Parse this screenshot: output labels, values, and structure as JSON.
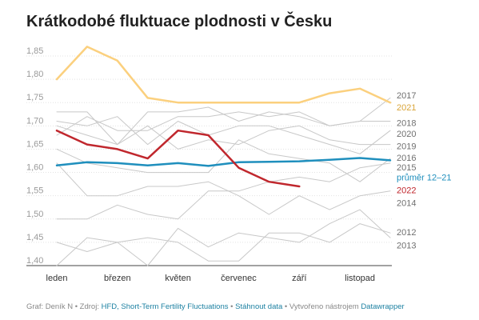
{
  "title": "Krátkodobé fluktuace plodnosti v Česku",
  "footer": {
    "prefix": "Graf: Deník N • Zdroj: ",
    "source_link": "HFD, Short-Term Fertility Fluctuations",
    "sep1": " • ",
    "download_link": "Stáhnout data",
    "sep2": " • Vytvořeno nástrojem ",
    "tool_link": "Datawrapper"
  },
  "chart_data": {
    "type": "line",
    "title": "Krátkodobé fluktuace plodnosti v Česku",
    "xlabel": "",
    "ylabel": "",
    "ylim": [
      1.4,
      1.88
    ],
    "yticks": [
      "1,40",
      "1,45",
      "1,50",
      "1,55",
      "1,60",
      "1,65",
      "1,70",
      "1,75",
      "1,80",
      "1,85"
    ],
    "ytick_values": [
      1.4,
      1.45,
      1.5,
      1.55,
      1.6,
      1.65,
      1.7,
      1.75,
      1.8,
      1.85
    ],
    "x_months": [
      1,
      2,
      3,
      4,
      5,
      6,
      7,
      8,
      9,
      10,
      11,
      12
    ],
    "xticks": [
      {
        "label": "leden",
        "month": 1
      },
      {
        "label": "březen",
        "month": 3
      },
      {
        "label": "květen",
        "month": 5
      },
      {
        "label": "červenec",
        "month": 7
      },
      {
        "label": "září",
        "month": 9
      },
      {
        "label": "listopad",
        "month": 11
      }
    ],
    "grid": true,
    "colors": {
      "gray": "#c8c8c8",
      "y2021": "#fbd07e",
      "y2022": "#c0272d",
      "avg": "#1f8fbd",
      "label_gray": "#707070"
    },
    "series": [
      {
        "name": "2013",
        "values": [
          1.4,
          1.46,
          1.45,
          1.4,
          1.48,
          1.44,
          1.47,
          1.46,
          1.45,
          1.49,
          1.52,
          1.46
        ],
        "style": "gray"
      },
      {
        "name": "2012",
        "values": [
          1.45,
          1.43,
          1.45,
          1.46,
          1.45,
          1.41,
          1.41,
          1.47,
          1.47,
          1.45,
          1.49,
          1.47
        ],
        "style": "gray"
      },
      {
        "name": "2014",
        "values": [
          1.62,
          1.55,
          1.55,
          1.57,
          1.57,
          1.58,
          1.55,
          1.51,
          1.55,
          1.52,
          1.55,
          1.56
        ],
        "style": "gray"
      },
      {
        "name": "2015",
        "values": [
          1.5,
          1.5,
          1.53,
          1.51,
          1.5,
          1.56,
          1.56,
          1.58,
          1.59,
          1.58,
          1.61,
          1.62
        ],
        "style": "gray"
      },
      {
        "name": "2016",
        "values": [
          1.65,
          1.62,
          1.61,
          1.6,
          1.6,
          1.6,
          1.67,
          1.64,
          1.63,
          1.62,
          1.58,
          1.63
        ],
        "style": "gray"
      },
      {
        "name": "2019",
        "values": [
          1.7,
          1.68,
          1.66,
          1.7,
          1.65,
          1.67,
          1.66,
          1.69,
          1.7,
          1.67,
          1.66,
          1.66
        ],
        "style": "gray"
      },
      {
        "name": "2020",
        "values": [
          1.71,
          1.7,
          1.72,
          1.66,
          1.71,
          1.68,
          1.7,
          1.7,
          1.68,
          1.66,
          1.64,
          1.69
        ],
        "style": "gray"
      },
      {
        "name": "2018",
        "values": [
          1.73,
          1.73,
          1.66,
          1.73,
          1.73,
          1.74,
          1.71,
          1.73,
          1.72,
          1.7,
          1.71,
          1.71
        ],
        "style": "gray"
      },
      {
        "name": "2017",
        "values": [
          1.68,
          1.72,
          1.69,
          1.69,
          1.72,
          1.72,
          1.73,
          1.72,
          1.73,
          1.7,
          1.71,
          1.76
        ],
        "style": "gray"
      },
      {
        "name": "2021",
        "values": [
          1.8,
          1.87,
          1.84,
          1.76,
          1.75,
          1.75,
          1.75,
          1.75,
          1.75,
          1.77,
          1.78,
          1.75
        ],
        "style": "y2021"
      },
      {
        "name": "průměr 12–21",
        "values": [
          1.615,
          1.622,
          1.62,
          1.615,
          1.62,
          1.614,
          1.622,
          1.623,
          1.624,
          1.627,
          1.631,
          1.626
        ],
        "style": "avg"
      },
      {
        "name": "2022",
        "values": [
          1.69,
          1.66,
          1.65,
          1.63,
          1.69,
          1.68,
          1.61,
          1.58,
          1.57
        ],
        "style": "y2022"
      }
    ],
    "end_labels": [
      {
        "text": "2017",
        "y": 1.766,
        "style": "gray"
      },
      {
        "text": "2021",
        "y": 1.74,
        "style": "y2021"
      },
      {
        "text": "2018",
        "y": 1.707,
        "style": "gray"
      },
      {
        "text": "2020",
        "y": 1.683,
        "style": "gray"
      },
      {
        "text": "2019",
        "y": 1.657,
        "style": "gray"
      },
      {
        "text": "2016",
        "y": 1.632,
        "style": "gray"
      },
      {
        "text": "2015",
        "y": 1.611,
        "style": "gray"
      },
      {
        "text": "průměr 12–21",
        "y": 1.59,
        "style": "avg"
      },
      {
        "text": "2022",
        "y": 1.562,
        "style": "y2022"
      },
      {
        "text": "2014",
        "y": 1.535,
        "style": "gray"
      },
      {
        "text": "2012",
        "y": 1.472,
        "style": "gray"
      },
      {
        "text": "2013",
        "y": 1.444,
        "style": "gray"
      }
    ]
  }
}
